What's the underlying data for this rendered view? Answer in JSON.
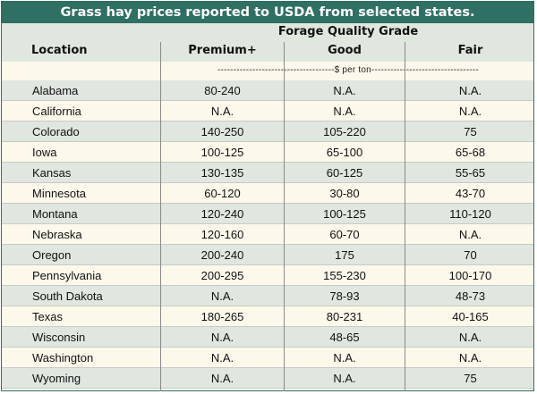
{
  "title": "Grass hay prices reported to USDA from selected states.",
  "header": {
    "location": "Location",
    "group": "Forage Quality Grade",
    "columns": [
      "Premium+",
      "Good",
      "Fair"
    ]
  },
  "unit": "-------------------------------------$ per ton----------------------------------",
  "rows": [
    [
      "Alabama",
      "80-240",
      "N.A.",
      "N.A."
    ],
    [
      "California",
      "N.A.",
      "N.A.",
      "N.A."
    ],
    [
      "Colorado",
      "140-250",
      "105-220",
      "75"
    ],
    [
      "Iowa",
      "100-125",
      "65-100",
      "65-68"
    ],
    [
      "Kansas",
      "130-135",
      "60-125",
      "55-65"
    ],
    [
      "Minnesota",
      "60-120",
      "30-80",
      "43-70"
    ],
    [
      "Montana",
      "120-240",
      "100-125",
      "110-120"
    ],
    [
      "Nebraska",
      "120-160",
      "60-70",
      "N.A."
    ],
    [
      "Oregon",
      "200-240",
      "175",
      "70"
    ],
    [
      "Pennsylvania",
      "200-295",
      "155-230",
      "100-170"
    ],
    [
      "South Dakota",
      "N.A.",
      "78-93",
      "48-73"
    ],
    [
      "Texas",
      "180-265",
      "80-231",
      "40-165"
    ],
    [
      "Wisconsin",
      "N.A.",
      "48-65",
      "N.A."
    ],
    [
      "Washington",
      "N.A.",
      "N.A.",
      "N.A."
    ],
    [
      "Wyoming",
      "N.A.",
      "N.A.",
      "75"
    ]
  ]
}
